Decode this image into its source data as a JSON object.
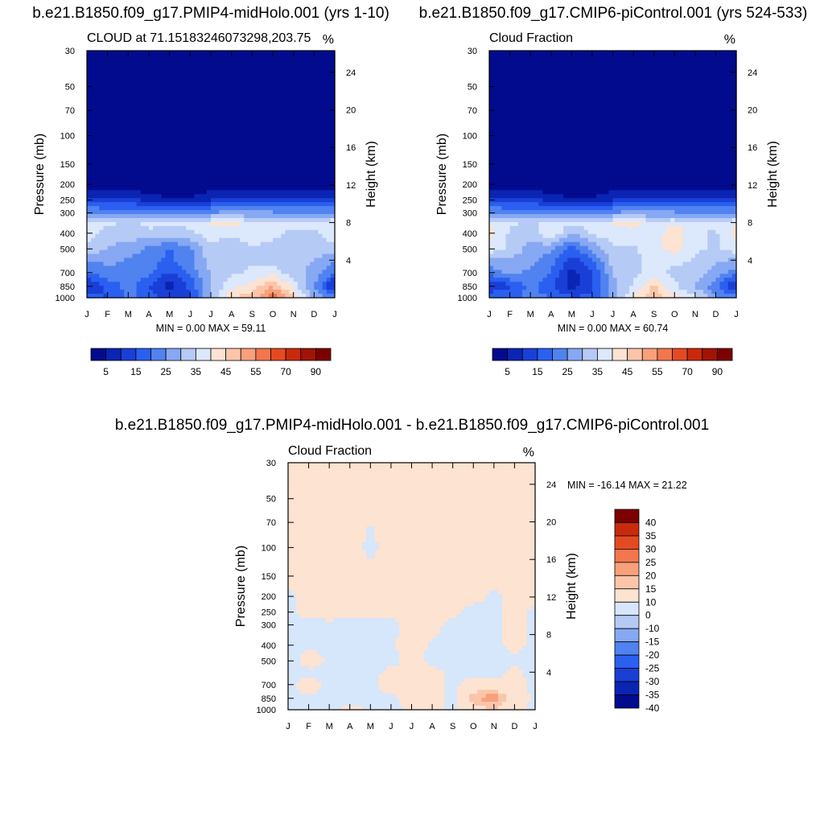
{
  "colormaps": {
    "cloud": [
      "#020b8e",
      "#0a24b4",
      "#1a3fd6",
      "#2a5ff0",
      "#5082f0",
      "#87a8f2",
      "#b6caf6",
      "#dce8fb",
      "#fde3d1",
      "#fbc5aa",
      "#f8a07b",
      "#f2764e",
      "#e44a22",
      "#c92a0b",
      "#a01405",
      "#7d0000"
    ],
    "diff": [
      "#020b8e",
      "#0a24b4",
      "#1a3fd6",
      "#2a5ff0",
      "#5082f0",
      "#87a8f2",
      "#b6caf6",
      "#d6e6fb",
      "#fde3d1",
      "#fbc5aa",
      "#f8a07b",
      "#f2764e",
      "#e44a22",
      "#c92a0b",
      "#7d0000"
    ]
  },
  "chart_data": [
    {
      "type": "heatmap",
      "title": "b.e21.B1850.f09_g17.PMIP4-midHolo.001 (yrs 1-10)",
      "left_string": "CLOUD at 71.15183246073298,203.75",
      "right_string": "%",
      "xlabel": "",
      "ylabel": "Pressure (mb)",
      "ylabel_right": "Height (km)",
      "x_tick_labels": [
        "J",
        "F",
        "M",
        "A",
        "M",
        "J",
        "J",
        "A",
        "S",
        "O",
        "N",
        "D",
        "J"
      ],
      "y_ticks": [
        30,
        50,
        70,
        100,
        150,
        200,
        250,
        300,
        400,
        500,
        700,
        850,
        1000
      ],
      "y_right_ticks": [
        24,
        20,
        16,
        12,
        8,
        4
      ],
      "stats": "MIN =   0.00 MAX =  59.11",
      "colorbar_labels": [
        "5",
        "15",
        "25",
        "35",
        "45",
        "55",
        "70",
        "90"
      ],
      "colormap": "cloud",
      "levels": [
        {
          "p": 1000,
          "v": [
            22,
            14,
            22,
            18,
            12,
            14,
            30,
            45,
            48,
            58,
            45,
            28,
            22
          ]
        },
        {
          "p": 850,
          "v": [
            8,
            16,
            22,
            15,
            8,
            16,
            30,
            38,
            42,
            50,
            38,
            25,
            8
          ]
        },
        {
          "p": 700,
          "v": [
            20,
            24,
            22,
            22,
            14,
            22,
            30,
            34,
            36,
            38,
            32,
            28,
            20
          ]
        },
        {
          "p": 600,
          "v": [
            24,
            26,
            24,
            22,
            18,
            24,
            32,
            34,
            34,
            34,
            32,
            30,
            24
          ]
        },
        {
          "p": 500,
          "v": [
            34,
            30,
            28,
            24,
            20,
            24,
            34,
            32,
            34,
            34,
            32,
            32,
            34
          ]
        },
        {
          "p": 400,
          "v": [
            38,
            32,
            32,
            34,
            32,
            34,
            37,
            36,
            38,
            36,
            34,
            34,
            38
          ]
        },
        {
          "p": 350,
          "v": [
            40,
            36,
            34,
            36,
            36,
            36,
            40,
            42,
            38,
            36,
            36,
            38,
            40
          ]
        },
        {
          "p": 300,
          "v": [
            26,
            24,
            24,
            26,
            26,
            26,
            26,
            26,
            26,
            26,
            25,
            25,
            26
          ]
        },
        {
          "p": 250,
          "v": [
            12,
            12,
            12,
            8,
            6,
            6,
            10,
            12,
            12,
            12,
            12,
            12,
            12
          ]
        },
        {
          "p": 200,
          "v": [
            2,
            1,
            1,
            0,
            0,
            0,
            1,
            1,
            2,
            1,
            1,
            1,
            2
          ]
        },
        {
          "p": 150,
          "v": [
            0,
            0,
            0,
            0,
            0,
            0,
            0,
            0,
            0,
            0,
            0,
            0,
            0
          ]
        },
        {
          "p": 30,
          "v": [
            0,
            0,
            0,
            0,
            0,
            0,
            0,
            0,
            0,
            0,
            0,
            0,
            0
          ]
        }
      ]
    },
    {
      "type": "heatmap",
      "title": "b.e21.B1850.f09_g17.CMIP6-piControl.001 (yrs 524-533)",
      "left_string": "Cloud Fraction",
      "right_string": "%",
      "xlabel": "",
      "ylabel": "Pressure (mb)",
      "ylabel_right": "Height (km)",
      "x_tick_labels": [
        "J",
        "F",
        "M",
        "A",
        "M",
        "J",
        "J",
        "A",
        "S",
        "O",
        "N",
        "D",
        "J"
      ],
      "y_ticks": [
        30,
        50,
        70,
        100,
        150,
        200,
        250,
        300,
        400,
        500,
        700,
        850,
        1000
      ],
      "y_right_ticks": [
        24,
        20,
        16,
        12,
        8,
        4
      ],
      "stats": "MIN =   0.00 MAX =  60.74",
      "colorbar_labels": [
        "5",
        "15",
        "25",
        "35",
        "45",
        "55",
        "70",
        "90"
      ],
      "colormap": "cloud",
      "levels": [
        {
          "p": 1000,
          "v": [
            22,
            18,
            22,
            20,
            16,
            16,
            28,
            40,
            48,
            42,
            36,
            26,
            22
          ]
        },
        {
          "p": 850,
          "v": [
            8,
            14,
            22,
            16,
            8,
            14,
            28,
            36,
            46,
            36,
            30,
            22,
            8
          ]
        },
        {
          "p": 700,
          "v": [
            22,
            26,
            24,
            20,
            8,
            14,
            30,
            34,
            36,
            34,
            32,
            28,
            22
          ]
        },
        {
          "p": 600,
          "v": [
            28,
            28,
            26,
            22,
            12,
            18,
            32,
            34,
            36,
            36,
            34,
            30,
            28
          ]
        },
        {
          "p": 500,
          "v": [
            38,
            34,
            28,
            26,
            18,
            26,
            34,
            34,
            38,
            42,
            36,
            34,
            38
          ]
        },
        {
          "p": 400,
          "v": [
            42,
            34,
            32,
            40,
            30,
            36,
            38,
            38,
            36,
            44,
            36,
            34,
            42
          ]
        },
        {
          "p": 350,
          "v": [
            40,
            36,
            34,
            36,
            36,
            36,
            40,
            42,
            38,
            40,
            36,
            38,
            40
          ]
        },
        {
          "p": 300,
          "v": [
            26,
            24,
            24,
            26,
            26,
            26,
            26,
            26,
            26,
            26,
            25,
            25,
            26
          ]
        },
        {
          "p": 250,
          "v": [
            12,
            12,
            12,
            8,
            6,
            6,
            10,
            12,
            12,
            12,
            12,
            12,
            12
          ]
        },
        {
          "p": 200,
          "v": [
            2,
            1,
            1,
            0,
            0,
            0,
            1,
            1,
            2,
            1,
            1,
            1,
            2
          ]
        },
        {
          "p": 150,
          "v": [
            0,
            0,
            0,
            0,
            0,
            0,
            0,
            0,
            0,
            0,
            0,
            0,
            0
          ]
        },
        {
          "p": 30,
          "v": [
            0,
            0,
            0,
            0,
            0,
            0,
            0,
            0,
            0,
            0,
            0,
            0,
            0
          ]
        }
      ]
    },
    {
      "type": "heatmap",
      "title": "b.e21.B1850.f09_g17.PMIP4-midHolo.001 - b.e21.B1850.f09_g17.CMIP6-piControl.001",
      "left_string": "Cloud Fraction",
      "right_string": "%",
      "xlabel": "",
      "ylabel": "Pressure (mb)",
      "ylabel_right": "Height (km)",
      "x_tick_labels": [
        "J",
        "F",
        "M",
        "A",
        "M",
        "J",
        "J",
        "A",
        "S",
        "O",
        "N",
        "D",
        "J"
      ],
      "y_ticks": [
        30,
        50,
        70,
        100,
        150,
        200,
        250,
        300,
        400,
        500,
        700,
        850,
        1000
      ],
      "y_right_ticks": [
        24,
        20,
        16,
        12,
        8,
        4
      ],
      "stats": "MIN = -16.14 MAX =  21.22",
      "colorbar_labels": [
        "40",
        "35",
        "30",
        "25",
        "20",
        "15",
        "10",
        "0",
        "-10",
        "-15",
        "-20",
        "-25",
        "-30",
        "-35",
        "-40"
      ],
      "colormap": "diff",
      "levels": [
        {
          "p": 1000,
          "v": [
            -2,
            -1,
            -2,
            2,
            -1,
            -2,
            1,
            2,
            -1,
            5,
            10,
            3,
            -2
          ]
        },
        {
          "p": 850,
          "v": [
            -2,
            -2,
            -1,
            -2,
            -1,
            -1,
            2,
            2,
            -2,
            14,
            20,
            6,
            -2
          ]
        },
        {
          "p": 700,
          "v": [
            -2,
            5,
            -2,
            -2,
            -2,
            3,
            3,
            2,
            -2,
            4,
            3,
            3,
            -2
          ]
        },
        {
          "p": 600,
          "v": [
            -3,
            -2,
            -2,
            -3,
            -2,
            2,
            4,
            3,
            -2,
            -1,
            -2,
            2,
            -3
          ]
        },
        {
          "p": 500,
          "v": [
            -3,
            3,
            -1,
            -3,
            -1,
            -2,
            2,
            -2,
            -2,
            -2,
            -2,
            -1,
            -3
          ]
        },
        {
          "p": 400,
          "v": [
            -2,
            -1,
            -2,
            -6,
            -2,
            -1,
            3,
            -1,
            -2,
            -3,
            -2,
            2,
            -2
          ]
        },
        {
          "p": 300,
          "v": [
            -2,
            -2,
            -1,
            -2,
            -2,
            -2,
            3,
            2,
            -2,
            -3,
            -1,
            2,
            -2
          ]
        },
        {
          "p": 250,
          "v": [
            -1,
            2,
            2,
            2,
            2,
            2,
            2,
            2,
            2,
            -2,
            -1,
            2,
            -1
          ]
        },
        {
          "p": 200,
          "v": [
            -1,
            2,
            2,
            2,
            2,
            2,
            2,
            2,
            2,
            2,
            -1,
            2,
            2
          ]
        },
        {
          "p": 150,
          "v": [
            2,
            2,
            2,
            2,
            1,
            2,
            2,
            2,
            2,
            2,
            1,
            2,
            2
          ]
        },
        {
          "p": 100,
          "v": [
            2,
            2,
            2,
            2,
            -1,
            2,
            2,
            2,
            2,
            2,
            2,
            2,
            2
          ]
        },
        {
          "p": 30,
          "v": [
            2,
            2,
            2,
            2,
            2,
            2,
            2,
            2,
            2,
            2,
            2,
            2,
            2
          ]
        }
      ]
    }
  ]
}
